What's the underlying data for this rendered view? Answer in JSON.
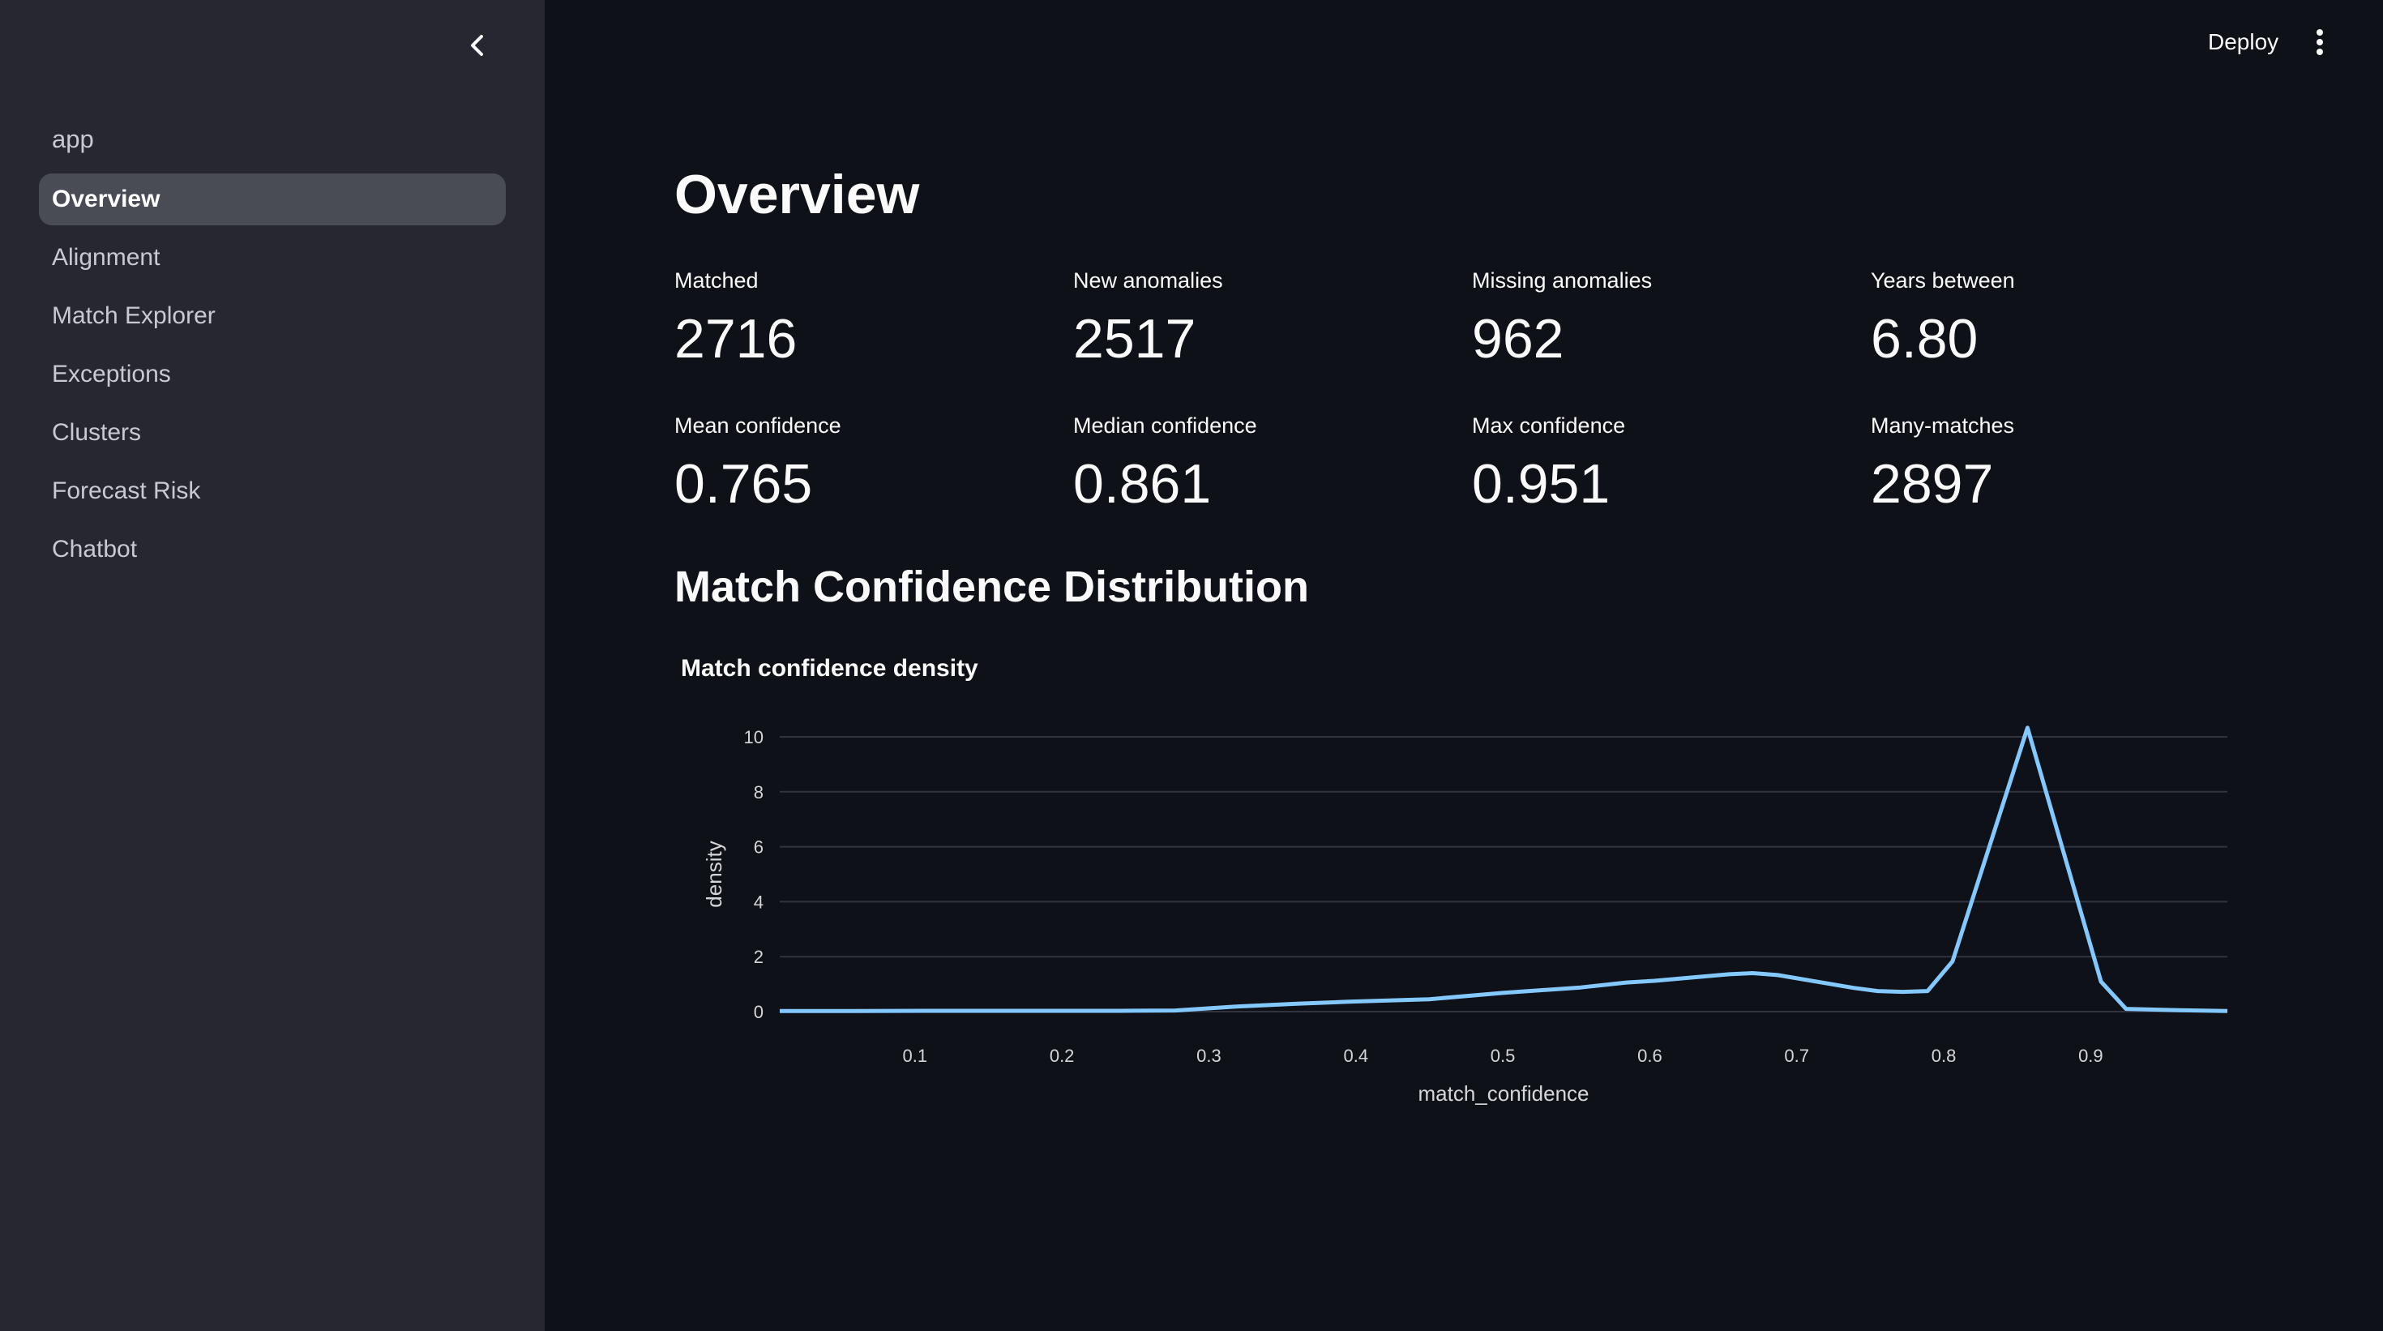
{
  "sidebar": {
    "collapse_icon": "chevron-left-icon",
    "header": "app",
    "items": [
      {
        "label": "Overview",
        "active": true
      },
      {
        "label": "Alignment",
        "active": false
      },
      {
        "label": "Match Explorer",
        "active": false
      },
      {
        "label": "Exceptions",
        "active": false
      },
      {
        "label": "Clusters",
        "active": false
      },
      {
        "label": "Forecast Risk",
        "active": false
      },
      {
        "label": "Chatbot",
        "active": false
      }
    ]
  },
  "topbar": {
    "deploy_label": "Deploy",
    "menu_icon": "kebab-menu-icon"
  },
  "main": {
    "title": "Overview",
    "metrics": [
      {
        "label": "Matched",
        "value": "2716"
      },
      {
        "label": "New anomalies",
        "value": "2517"
      },
      {
        "label": "Missing anomalies",
        "value": "962"
      },
      {
        "label": "Years between",
        "value": "6.80"
      },
      {
        "label": "Mean confidence",
        "value": "0.765"
      },
      {
        "label": "Median confidence",
        "value": "0.861"
      },
      {
        "label": "Max confidence",
        "value": "0.951"
      },
      {
        "label": "Many-matches",
        "value": "2897"
      }
    ],
    "section_title": "Match Confidence Distribution"
  },
  "colors": {
    "sidebar_bg": "#262730",
    "main_bg": "#0e1117",
    "active_item_bg": "#4a4c55",
    "line": "#83c9ff",
    "grid": "#31333f"
  },
  "chart_data": {
    "type": "line",
    "title": "Match confidence density",
    "xlabel": "match_confidence",
    "ylabel": "density",
    "xlim": [
      0.008,
      0.993
    ],
    "ylim": [
      0,
      10.5
    ],
    "grid": true,
    "legend": "none",
    "x_ticks": [
      "0.1",
      "0.2",
      "0.3",
      "0.4",
      "0.5",
      "0.6",
      "0.7",
      "0.8",
      "0.9"
    ],
    "y_ticks": [
      "0",
      "2",
      "4",
      "6",
      "8",
      "10"
    ],
    "series": [
      {
        "name": "density",
        "x": [
          0.008,
          0.06,
          0.12,
          0.18,
          0.24,
          0.277,
          0.32,
          0.36,
          0.395,
          0.45,
          0.5,
          0.553,
          0.584,
          0.603,
          0.654,
          0.67,
          0.687,
          0.739,
          0.755,
          0.772,
          0.789,
          0.806,
          0.857,
          0.907,
          0.924,
          0.96,
          0.993
        ],
        "y": [
          0.02,
          0.02,
          0.03,
          0.03,
          0.03,
          0.04,
          0.19,
          0.29,
          0.36,
          0.45,
          0.68,
          0.88,
          1.06,
          1.12,
          1.36,
          1.4,
          1.33,
          0.86,
          0.75,
          0.72,
          0.75,
          1.83,
          10.33,
          1.09,
          0.1,
          0.05,
          0.02
        ]
      }
    ]
  }
}
